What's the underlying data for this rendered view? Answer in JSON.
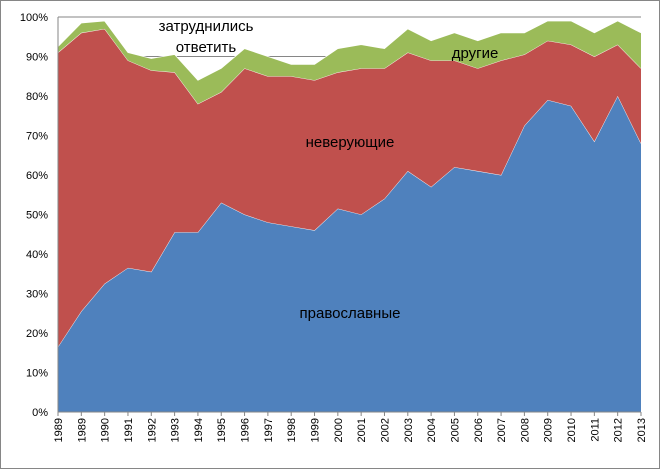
{
  "chart_data": {
    "type": "area",
    "stacked": true,
    "x": [
      "1989",
      "1989",
      "1990",
      "1991",
      "1992",
      "1993",
      "1994",
      "1995",
      "1996",
      "1997",
      "1998",
      "1999",
      "2000",
      "2001",
      "2002",
      "2003",
      "2004",
      "2005",
      "2006",
      "2007",
      "2008",
      "2009",
      "2010",
      "2011",
      "2012",
      "2013"
    ],
    "ylim": [
      0,
      100
    ],
    "yticks": [
      "0%",
      "10%",
      "20%",
      "30%",
      "40%",
      "50%",
      "60%",
      "70%",
      "80%",
      "90%",
      "100%"
    ],
    "grid": true,
    "legend": "none",
    "series": [
      {
        "name": "православные",
        "color": "#4f81bd",
        "values": [
          16.5,
          25.5,
          32.5,
          36.5,
          35.5,
          45.5,
          45.5,
          53,
          50,
          48,
          47,
          46,
          51.5,
          50,
          54,
          61,
          57,
          62,
          61,
          60,
          72.5,
          79,
          77.5,
          68.5,
          80,
          68
        ]
      },
      {
        "name": "неверующие",
        "color": "#c0504d",
        "values": [
          74.5,
          70.5,
          64.5,
          52.5,
          51,
          40.5,
          32.5,
          28,
          37,
          37,
          38,
          38,
          34.5,
          37,
          33,
          30,
          32,
          27,
          26,
          29,
          18,
          15,
          15.5,
          21.5,
          13,
          19
        ]
      },
      {
        "name": "затруднились ответить",
        "color": "#9bbb59",
        "values": [
          1.5,
          2.5,
          2.0,
          2.0,
          3.0,
          4.5,
          6.0,
          6.0,
          5.0,
          5.0,
          3.0,
          4.0,
          6.0,
          6.0,
          5.0,
          6.0,
          5.0,
          7.0,
          7.0,
          7.0,
          5.5,
          5.0,
          6.0,
          6.0,
          6.0,
          9.0
        ]
      }
    ],
    "annotations": {
      "orthodox": "православные",
      "nonbelievers": "неверующие",
      "other": "другие",
      "undecided_line1": "затруднились",
      "undecided_line2": "ответить"
    }
  }
}
